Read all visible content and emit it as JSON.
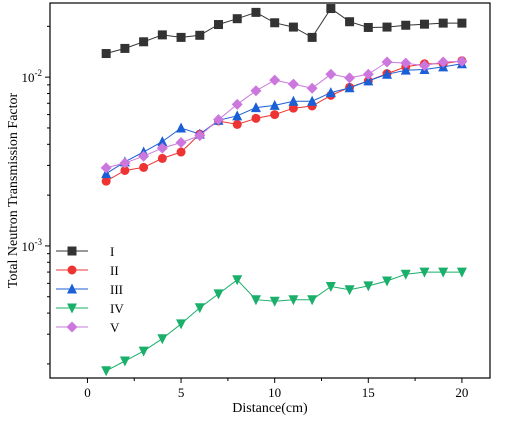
{
  "chart_data": {
    "type": "scatter",
    "title": "",
    "xlabel": "Distance(cm)",
    "ylabel": "Total Neutron Transmission Factor",
    "xlim": [
      -2,
      21.5
    ],
    "ylim": [
      0.000165,
      0.0275
    ],
    "yscale": "log",
    "grid": false,
    "legend_position": "bottom-left",
    "xticks": [
      0,
      5,
      10,
      15,
      20
    ],
    "yticks": [
      {
        "value": 0.001,
        "label": "10-3"
      },
      {
        "value": 0.01,
        "label": "10-2"
      }
    ],
    "series": [
      {
        "name": "I",
        "color": "#333333",
        "marker": "square",
        "x": [
          1,
          2,
          3,
          4,
          5,
          6,
          7,
          8,
          9,
          10,
          11,
          12,
          13,
          14,
          15,
          16,
          17,
          18,
          19,
          20
        ],
        "y": [
          0.0138,
          0.0148,
          0.0162,
          0.0178,
          0.0172,
          0.0177,
          0.0205,
          0.0222,
          0.0242,
          0.021,
          0.0198,
          0.0172,
          0.0255,
          0.0213,
          0.0197,
          0.0198,
          0.0203,
          0.0206,
          0.0209,
          0.0209
        ]
      },
      {
        "name": "II",
        "color": "#ee3333",
        "marker": "circle",
        "x": [
          1,
          2,
          3,
          4,
          5,
          6,
          7,
          8,
          9,
          10,
          11,
          12,
          13,
          14,
          15,
          16,
          17,
          18,
          19,
          20
        ],
        "y": [
          0.00242,
          0.0028,
          0.00292,
          0.0033,
          0.0036,
          0.0046,
          0.0055,
          0.00525,
          0.0057,
          0.006,
          0.00655,
          0.00675,
          0.0078,
          0.0087,
          0.0095,
          0.0105,
          0.0115,
          0.012,
          0.012,
          0.0125
        ]
      },
      {
        "name": "III",
        "color": "#1a5fd6",
        "marker": "triangle-up",
        "x": [
          1,
          2,
          3,
          4,
          5,
          6,
          7,
          8,
          9,
          10,
          11,
          12,
          13,
          14,
          15,
          16,
          17,
          18,
          19,
          20
        ],
        "y": [
          0.00268,
          0.00315,
          0.0036,
          0.00415,
          0.005,
          0.0046,
          0.00555,
          0.0059,
          0.0066,
          0.0068,
          0.0072,
          0.0072,
          0.0081,
          0.00865,
          0.0095,
          0.0104,
          0.011,
          0.0111,
          0.0115,
          0.012
        ]
      },
      {
        "name": "IV",
        "color": "#1aaf6a",
        "marker": "triangle-down",
        "x": [
          1,
          2,
          3,
          4,
          5,
          6,
          7,
          8,
          9,
          10,
          11,
          12,
          13,
          14,
          15,
          16,
          17,
          18,
          19,
          20
        ],
        "y": [
          0.000182,
          0.000208,
          0.000238,
          0.000282,
          0.000345,
          0.00043,
          0.00052,
          0.00063,
          0.00048,
          0.00047,
          0.00048,
          0.00048,
          0.000575,
          0.00055,
          0.00058,
          0.00062,
          0.00068,
          0.0007,
          0.0007,
          0.0007
        ]
      },
      {
        "name": "V",
        "color": "#cc77dd",
        "marker": "diamond",
        "x": [
          1,
          2,
          3,
          4,
          5,
          6,
          7,
          8,
          9,
          10,
          11,
          12,
          13,
          14,
          15,
          16,
          17,
          18,
          19,
          20
        ],
        "y": [
          0.0029,
          0.0031,
          0.0034,
          0.0038,
          0.0041,
          0.0045,
          0.0056,
          0.0069,
          0.0083,
          0.0096,
          0.0091,
          0.0086,
          0.0104,
          0.0099,
          0.0104,
          0.0123,
          0.0121,
          0.0117,
          0.0123,
          0.0124
        ]
      }
    ]
  }
}
